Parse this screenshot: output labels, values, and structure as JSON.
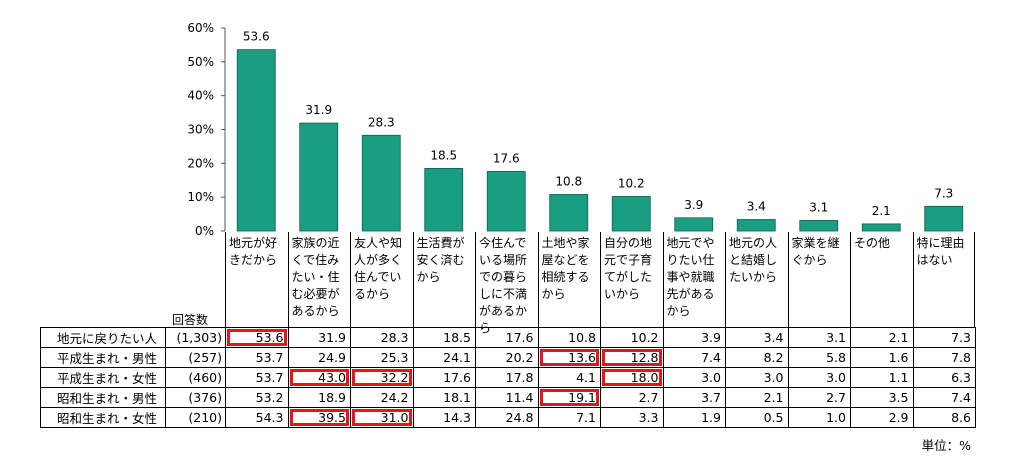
{
  "chart_data": {
    "type": "bar",
    "categories": [
      "地元が好きだから",
      "家族の近くで住みたい・住む必要があるから",
      "友人や知人が多く住んでいるから",
      "生活費が安く済むから",
      "今住んでいる場所での暮らしに不満があるから",
      "土地や家屋などを相続するから",
      "自分の地元で子育てがしたいから",
      "地元でやりたい仕事や就職先があるから",
      "地元の人と結婚したいから",
      "家業を継ぐから",
      "その他",
      "特に理由はない"
    ],
    "values": [
      53.6,
      31.9,
      28.3,
      18.5,
      17.6,
      10.8,
      10.2,
      3.9,
      3.4,
      3.1,
      2.1,
      7.3
    ],
    "value_labels": [
      "53.6",
      "31.9",
      "28.3",
      "18.5",
      "17.6",
      "10.8",
      "10.2",
      "3.9",
      "3.4",
      "3.1",
      "2.1",
      "7.3"
    ],
    "ylim": [
      0,
      60
    ],
    "yticks": [
      "0%",
      "10%",
      "20%",
      "30%",
      "40%",
      "50%",
      "60%"
    ],
    "bar_color": "#1a9e82",
    "bar_edge_color": "#0b5e4c"
  },
  "table": {
    "respondents_header": "回答数",
    "rows": [
      {
        "label": "地元に戻りたい人",
        "n": "(1,303)",
        "values": [
          "53.6",
          "31.9",
          "28.3",
          "18.5",
          "17.6",
          "10.8",
          "10.2",
          "3.9",
          "3.4",
          "3.1",
          "2.1",
          "7.3"
        ],
        "highlighted": [
          0
        ]
      },
      {
        "label": "平成生まれ・男性",
        "n": "(257)",
        "values": [
          "53.7",
          "24.9",
          "25.3",
          "24.1",
          "20.2",
          "13.6",
          "12.8",
          "7.4",
          "8.2",
          "5.8",
          "1.6",
          "7.8"
        ],
        "highlighted": [
          5,
          6
        ]
      },
      {
        "label": "平成生まれ・女性",
        "n": "(460)",
        "values": [
          "53.7",
          "43.0",
          "32.2",
          "17.6",
          "17.8",
          "4.1",
          "18.0",
          "3.0",
          "3.0",
          "3.0",
          "1.1",
          "6.3"
        ],
        "highlighted": [
          1,
          2,
          6
        ]
      },
      {
        "label": "昭和生まれ・男性",
        "n": "(376)",
        "values": [
          "53.2",
          "18.9",
          "24.2",
          "18.1",
          "11.4",
          "19.1",
          "2.7",
          "3.7",
          "2.1",
          "2.7",
          "3.5",
          "7.4"
        ],
        "highlighted": [
          5
        ]
      },
      {
        "label": "昭和生まれ・女性",
        "n": "(210)",
        "values": [
          "54.3",
          "39.5",
          "31.0",
          "14.3",
          "24.8",
          "7.1",
          "3.3",
          "1.9",
          "0.5",
          "1.0",
          "2.9",
          "8.6"
        ],
        "highlighted": [
          1,
          2
        ]
      }
    ],
    "highlight_color": "#e8141c"
  },
  "unit_note": "単位：%"
}
